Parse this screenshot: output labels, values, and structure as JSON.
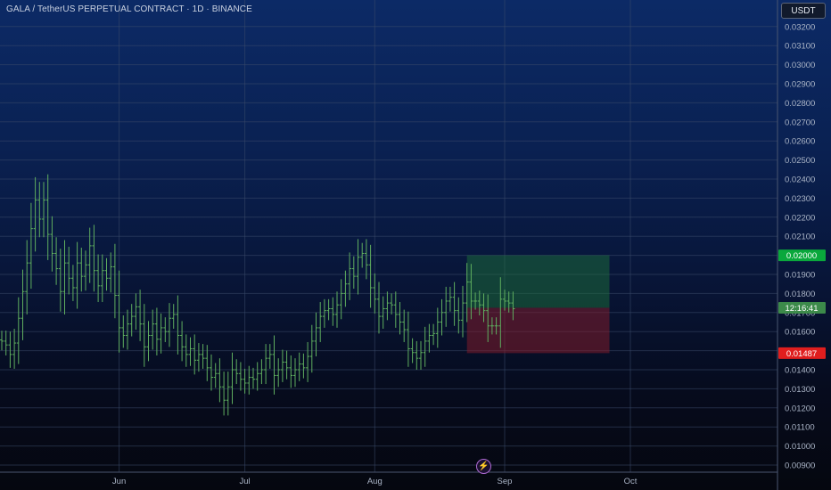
{
  "header": {
    "title": "GALA / TetherUS PERPETUAL CONTRACT · 1D · BINANCE",
    "currency_button": "USDT"
  },
  "colors": {
    "bar": "#5fae5f",
    "target_label": "#0aa83c",
    "stop_label": "#e01e1e",
    "current_label": "#3c8a4a",
    "target_zone": "#1f7a3a",
    "stop_zone": "#8a1c2a"
  },
  "chart_data": {
    "type": "ohlc",
    "ylim": [
      0.0085,
      0.033
    ],
    "y_ticks": [
      "0.00900",
      "0.01000",
      "0.01100",
      "0.01200",
      "0.01300",
      "0.01400",
      "0.01500",
      "0.01600",
      "0.01700",
      "0.01800",
      "0.01900",
      "0.02000",
      "0.02100",
      "0.02200",
      "0.02300",
      "0.02400",
      "0.02500",
      "0.02600",
      "0.02700",
      "0.02800",
      "0.02900",
      "0.03000",
      "0.03100",
      "0.03200"
    ],
    "x_ticks": [
      {
        "label": "Jun",
        "date": "2024-06-01"
      },
      {
        "label": "Jul",
        "date": "2024-07-01"
      },
      {
        "label": "Aug",
        "date": "2024-08-01"
      },
      {
        "label": "Sep",
        "date": "2024-09-01"
      },
      {
        "label": "Oct",
        "date": "2024-10-01"
      }
    ],
    "first_date": "2024-05-04",
    "closes": [
      0.0155,
      0.0153,
      0.0148,
      0.0154,
      0.0167,
      0.0181,
      0.0196,
      0.0214,
      0.0229,
      0.0219,
      0.0229,
      0.0211,
      0.0201,
      0.0193,
      0.0181,
      0.0196,
      0.0188,
      0.0183,
      0.0196,
      0.0189,
      0.0195,
      0.0205,
      0.0192,
      0.0184,
      0.0192,
      0.0188,
      0.0194,
      0.0179,
      0.0162,
      0.0158,
      0.0164,
      0.0168,
      0.0173,
      0.0164,
      0.0152,
      0.0158,
      0.0164,
      0.0156,
      0.0162,
      0.016,
      0.0167,
      0.0169,
      0.0158,
      0.0152,
      0.0148,
      0.0151,
      0.0145,
      0.0148,
      0.0146,
      0.0141,
      0.0136,
      0.0138,
      0.0131,
      0.0124,
      0.0131,
      0.014,
      0.0138,
      0.0135,
      0.0133,
      0.0136,
      0.0135,
      0.0138,
      0.014,
      0.0146,
      0.0148,
      0.0137,
      0.014,
      0.0144,
      0.0141,
      0.0137,
      0.014,
      0.0143,
      0.0141,
      0.0147,
      0.0155,
      0.0162,
      0.0168,
      0.0171,
      0.0172,
      0.0169,
      0.0174,
      0.018,
      0.0185,
      0.0193,
      0.0189,
      0.0199,
      0.0201,
      0.0195,
      0.0183,
      0.0177,
      0.0168,
      0.0172,
      0.0175,
      0.0174,
      0.0169,
      0.0165,
      0.0161,
      0.0151,
      0.0149,
      0.0146,
      0.0149,
      0.0155,
      0.0158,
      0.0159,
      0.0165,
      0.017,
      0.0176,
      0.0178,
      0.0171,
      0.0166,
      0.0175,
      0.0186,
      0.0176,
      0.0176,
      0.0174,
      0.0171,
      0.0163,
      0.0163,
      0.0163,
      0.0177,
      0.0176,
      0.0175,
      0.0172
    ],
    "current_price": "0.01725",
    "countdown": "12:16:41",
    "position": {
      "entry": 0.01725,
      "target": 0.02,
      "stop": 0.01487,
      "target_label": "0.02000",
      "stop_label": "0.01487",
      "start_date": "2024-08-23",
      "end_date": "2024-09-26"
    }
  }
}
